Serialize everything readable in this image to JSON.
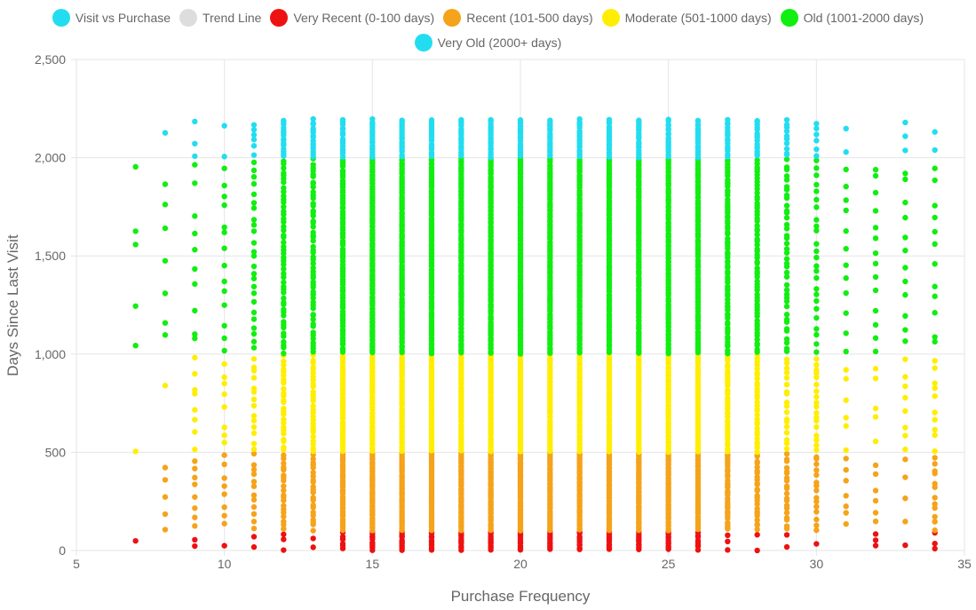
{
  "chart_data": {
    "type": "scatter",
    "xlabel": "Purchase Frequency",
    "ylabel": "Days Since Last Visit",
    "xlim": [
      5,
      35
    ],
    "ylim": [
      0,
      2500
    ],
    "x_ticks": [
      "5",
      "10",
      "15",
      "20",
      "25",
      "30",
      "35"
    ],
    "y_ticks": [
      "0",
      "500",
      "1,000",
      "1,500",
      "2,000",
      "2,500"
    ],
    "grid": true,
    "legend_position": "top",
    "legend": [
      {
        "label": "Visit vs Purchase",
        "color": "#22ddf0"
      },
      {
        "label": "Trend Line",
        "color": "#dddddd"
      },
      {
        "label": "Very Recent (0-100 days)",
        "color": "#ee1111"
      },
      {
        "label": "Recent (101-500 days)",
        "color": "#f5a31a"
      },
      {
        "label": "Moderate (501-1000 days)",
        "color": "#ffee00"
      },
      {
        "label": "Old (1001-2000 days)",
        "color": "#11ee11"
      },
      {
        "label": "Very Old (2000+ days)",
        "color": "#22ddf0"
      }
    ],
    "series": [
      {
        "name": "Very Recent (0-100 days)",
        "color": "#ee1111",
        "y_range": [
          0,
          100
        ],
        "points_per_x": {
          "7": 1,
          "9": 2,
          "10": 1,
          "11": 2,
          "12": 3,
          "13": 2,
          "14": 6,
          "15": 10,
          "16": 10,
          "17": 10,
          "18": 10,
          "19": 10,
          "20": 10,
          "21": 10,
          "22": 10,
          "23": 10,
          "24": 10,
          "25": 10,
          "26": 8,
          "27": 3,
          "28": 2,
          "29": 2,
          "30": 1,
          "32": 3,
          "33": 1,
          "34": 3
        }
      },
      {
        "name": "Recent (101-500 days)",
        "color": "#f5a31a",
        "y_range": [
          101,
          500
        ],
        "points_per_x": {
          "8": 5,
          "9": 8,
          "10": 8,
          "11": 12,
          "12": 20,
          "13": 22,
          "14": 35,
          "15": 45,
          "16": 45,
          "17": 45,
          "18": 45,
          "19": 45,
          "20": 45,
          "21": 45,
          "22": 45,
          "23": 45,
          "24": 45,
          "25": 45,
          "26": 40,
          "27": 30,
          "28": 25,
          "29": 20,
          "30": 15,
          "31": 7,
          "32": 6,
          "33": 4,
          "34": 12
        }
      },
      {
        "name": "Moderate (501-1000 days)",
        "color": "#ffee00",
        "y_range": [
          501,
          1000
        ],
        "points_per_x": {
          "7": 1,
          "8": 1,
          "9": 8,
          "10": 8,
          "11": 14,
          "12": 25,
          "13": 28,
          "14": 40,
          "15": 50,
          "16": 50,
          "17": 50,
          "18": 50,
          "19": 50,
          "20": 50,
          "21": 50,
          "22": 50,
          "23": 50,
          "24": 50,
          "25": 50,
          "26": 45,
          "27": 35,
          "28": 30,
          "29": 18,
          "30": 18,
          "31": 6,
          "32": 5,
          "33": 8,
          "34": 10
        }
      },
      {
        "name": "Old (1001-2000 days)",
        "color": "#11ee11",
        "y_range": [
          1001,
          2000
        ],
        "points_per_x": {
          "7": 5,
          "8": 7,
          "9": 10,
          "10": 14,
          "11": 25,
          "12": 50,
          "13": 55,
          "14": 75,
          "15": 100,
          "16": 100,
          "17": 100,
          "18": 100,
          "19": 100,
          "20": 100,
          "21": 100,
          "22": 100,
          "23": 100,
          "24": 100,
          "25": 100,
          "26": 90,
          "27": 70,
          "28": 60,
          "29": 40,
          "30": 25,
          "31": 12,
          "32": 14,
          "33": 12,
          "34": 12
        }
      },
      {
        "name": "Very Old (2000+ days)",
        "color": "#22ddf0",
        "y_range": [
          2001,
          2200
        ],
        "points_per_x": {
          "8": 1,
          "9": 3,
          "10": 2,
          "11": 6,
          "12": 15,
          "13": 15,
          "14": 15,
          "15": 18,
          "16": 18,
          "17": 18,
          "18": 18,
          "19": 18,
          "20": 18,
          "21": 18,
          "22": 18,
          "23": 18,
          "24": 18,
          "25": 18,
          "26": 18,
          "27": 15,
          "28": 15,
          "29": 10,
          "30": 6,
          "31": 2,
          "33": 3,
          "34": 2
        }
      }
    ]
  }
}
